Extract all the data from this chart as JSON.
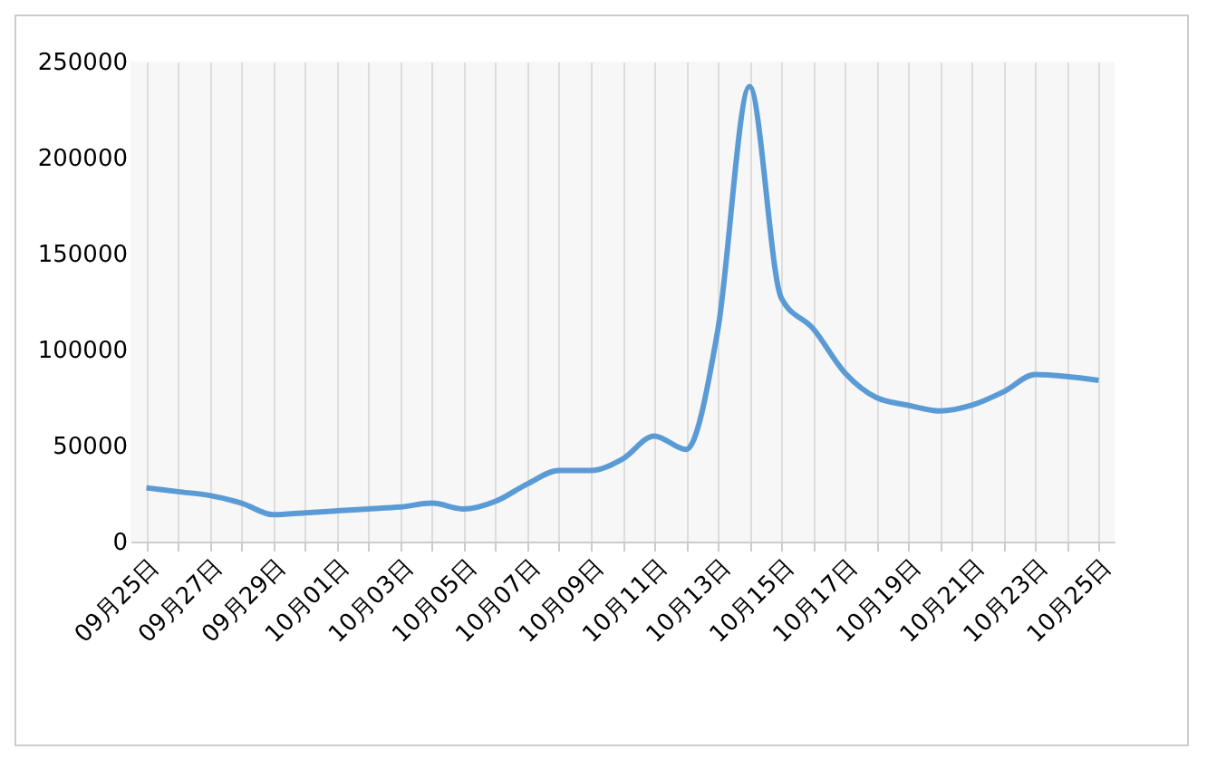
{
  "chart_data": {
    "type": "line",
    "categories": [
      "09月25日",
      null,
      "09月27日",
      null,
      "09月29日",
      null,
      "10月01日",
      null,
      "10月03日",
      null,
      "10月05日",
      null,
      "10月07日",
      null,
      "10月09日",
      null,
      "10月11日",
      null,
      "10月13日",
      null,
      "10月15日",
      null,
      "10月17日",
      null,
      "10月19日",
      null,
      "10月21日",
      null,
      "10月23日",
      null,
      "10月25日"
    ],
    "series": [
      {
        "color": "#5b9bd5",
        "values": [
          28000,
          26000,
          24000,
          20000,
          14000,
          15000,
          16000,
          17000,
          18000,
          20000,
          17000,
          21000,
          30000,
          37000,
          37000,
          43000,
          55000,
          48000,
          110000,
          237000,
          127000,
          111000,
          88000,
          75000,
          71000,
          68000,
          71000,
          78000,
          87000,
          86000,
          84000
        ]
      }
    ],
    "ylim": [
      0,
      250000
    ],
    "yticks": [
      0,
      50000,
      100000,
      150000,
      200000,
      250000
    ],
    "grid": "x",
    "marker": "none",
    "line_style": "solid"
  }
}
